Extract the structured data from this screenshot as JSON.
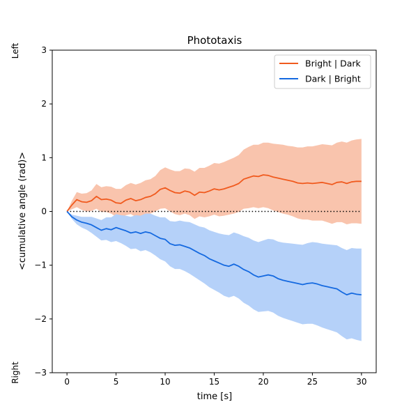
{
  "chart_data": {
    "type": "line",
    "title": "Phototaxis",
    "xlabel": "time [s]",
    "ylabel": "<cumulative angle (rad)>",
    "y_top_label": "Left",
    "y_bottom_label": "Right",
    "xlim": [
      -1.5,
      31.5
    ],
    "ylim": [
      -3,
      3
    ],
    "x_ticks": [
      0,
      5,
      10,
      15,
      20,
      25,
      30
    ],
    "y_ticks": [
      -3,
      -2,
      -1,
      0,
      1,
      2,
      3
    ],
    "y_tick_labels": [
      "−3",
      "−2",
      "−1",
      "0",
      "1",
      "2",
      "3"
    ],
    "legend_position": "top-right",
    "reference_line": {
      "y": 0,
      "style": "dotted",
      "x_range": [
        0,
        30
      ]
    },
    "x": [
      0,
      0.5,
      1,
      1.5,
      2,
      2.5,
      3,
      3.5,
      4,
      4.5,
      5,
      5.5,
      6,
      6.5,
      7,
      7.5,
      8,
      8.5,
      9,
      9.5,
      10,
      10.5,
      11,
      11.5,
      12,
      12.5,
      13,
      13.5,
      14,
      14.5,
      15,
      15.5,
      16,
      16.5,
      17,
      17.5,
      18,
      18.5,
      19,
      19.5,
      20,
      20.5,
      21,
      21.5,
      22,
      22.5,
      23,
      23.5,
      24,
      24.5,
      25,
      25.5,
      26,
      26.5,
      27,
      27.5,
      28,
      28.5,
      29,
      29.5,
      30
    ],
    "series": [
      {
        "name": "Bright | Dark",
        "color": "#f05a1e",
        "band_color": "#f9c4ad",
        "values": [
          0,
          0.12,
          0.22,
          0.18,
          0.17,
          0.2,
          0.28,
          0.22,
          0.23,
          0.21,
          0.16,
          0.15,
          0.21,
          0.24,
          0.2,
          0.22,
          0.26,
          0.28,
          0.33,
          0.41,
          0.44,
          0.39,
          0.35,
          0.34,
          0.38,
          0.36,
          0.3,
          0.36,
          0.35,
          0.38,
          0.42,
          0.4,
          0.42,
          0.45,
          0.48,
          0.52,
          0.6,
          0.63,
          0.66,
          0.65,
          0.68,
          0.67,
          0.64,
          0.62,
          0.6,
          0.58,
          0.56,
          0.53,
          0.52,
          0.53,
          0.52,
          0.53,
          0.54,
          0.52,
          0.5,
          0.54,
          0.55,
          0.52,
          0.55,
          0.56,
          0.56
        ],
        "lower": [
          0,
          0.04,
          0.08,
          0.03,
          0.0,
          0.01,
          0.05,
          -0.01,
          -0.01,
          -0.04,
          -0.1,
          -0.12,
          -0.07,
          -0.05,
          -0.1,
          -0.09,
          -0.06,
          -0.04,
          0.0,
          0.05,
          0.06,
          0.0,
          -0.05,
          -0.07,
          -0.04,
          -0.07,
          -0.14,
          -0.09,
          -0.11,
          -0.09,
          -0.06,
          -0.09,
          -0.08,
          -0.06,
          -0.04,
          -0.01,
          0.05,
          0.06,
          0.08,
          0.06,
          0.08,
          0.06,
          0.02,
          -0.01,
          -0.04,
          -0.06,
          -0.09,
          -0.13,
          -0.15,
          -0.15,
          -0.17,
          -0.17,
          -0.17,
          -0.2,
          -0.23,
          -0.2,
          -0.2,
          -0.24,
          -0.22,
          -0.22,
          -0.23
        ],
        "upper": [
          0,
          0.2,
          0.36,
          0.33,
          0.34,
          0.39,
          0.51,
          0.45,
          0.47,
          0.46,
          0.42,
          0.42,
          0.49,
          0.53,
          0.5,
          0.53,
          0.58,
          0.6,
          0.66,
          0.77,
          0.82,
          0.78,
          0.75,
          0.75,
          0.8,
          0.79,
          0.74,
          0.81,
          0.81,
          0.85,
          0.9,
          0.89,
          0.92,
          0.96,
          1.0,
          1.05,
          1.15,
          1.2,
          1.24,
          1.24,
          1.28,
          1.28,
          1.26,
          1.25,
          1.24,
          1.22,
          1.21,
          1.19,
          1.19,
          1.21,
          1.21,
          1.23,
          1.25,
          1.24,
          1.23,
          1.28,
          1.3,
          1.28,
          1.32,
          1.34,
          1.35
        ]
      },
      {
        "name": "Dark | Bright",
        "color": "#1469e0",
        "band_color": "#b5d1f9",
        "values": [
          0,
          -0.1,
          -0.16,
          -0.2,
          -0.22,
          -0.25,
          -0.3,
          -0.35,
          -0.32,
          -0.34,
          -0.3,
          -0.33,
          -0.36,
          -0.4,
          -0.38,
          -0.41,
          -0.38,
          -0.4,
          -0.45,
          -0.5,
          -0.52,
          -0.6,
          -0.63,
          -0.62,
          -0.65,
          -0.68,
          -0.73,
          -0.78,
          -0.82,
          -0.88,
          -0.92,
          -0.96,
          -1.0,
          -1.02,
          -0.98,
          -1.02,
          -1.08,
          -1.12,
          -1.18,
          -1.22,
          -1.2,
          -1.18,
          -1.2,
          -1.25,
          -1.28,
          -1.3,
          -1.32,
          -1.34,
          -1.36,
          -1.34,
          -1.33,
          -1.35,
          -1.38,
          -1.4,
          -1.42,
          -1.44,
          -1.5,
          -1.55,
          -1.52,
          -1.54,
          -1.55
        ],
        "lower": [
          0,
          -0.14,
          -0.24,
          -0.3,
          -0.34,
          -0.4,
          -0.47,
          -0.54,
          -0.53,
          -0.57,
          -0.55,
          -0.59,
          -0.64,
          -0.7,
          -0.69,
          -0.74,
          -0.72,
          -0.76,
          -0.82,
          -0.89,
          -0.93,
          -1.02,
          -1.07,
          -1.07,
          -1.11,
          -1.16,
          -1.22,
          -1.28,
          -1.34,
          -1.41,
          -1.46,
          -1.51,
          -1.57,
          -1.6,
          -1.57,
          -1.62,
          -1.7,
          -1.75,
          -1.82,
          -1.87,
          -1.86,
          -1.85,
          -1.88,
          -1.94,
          -1.98,
          -2.01,
          -2.04,
          -2.07,
          -2.1,
          -2.09,
          -2.09,
          -2.12,
          -2.16,
          -2.19,
          -2.22,
          -2.25,
          -2.32,
          -2.38,
          -2.36,
          -2.39,
          -2.41
        ],
        "upper": [
          0,
          -0.06,
          -0.08,
          -0.1,
          -0.1,
          -0.1,
          -0.13,
          -0.16,
          -0.11,
          -0.11,
          -0.05,
          -0.07,
          -0.08,
          -0.1,
          -0.07,
          -0.08,
          -0.04,
          -0.04,
          -0.08,
          -0.11,
          -0.11,
          -0.18,
          -0.19,
          -0.17,
          -0.19,
          -0.2,
          -0.24,
          -0.28,
          -0.3,
          -0.35,
          -0.38,
          -0.41,
          -0.43,
          -0.44,
          -0.39,
          -0.42,
          -0.46,
          -0.49,
          -0.54,
          -0.57,
          -0.54,
          -0.51,
          -0.52,
          -0.56,
          -0.58,
          -0.59,
          -0.6,
          -0.61,
          -0.62,
          -0.59,
          -0.57,
          -0.58,
          -0.6,
          -0.61,
          -0.62,
          -0.63,
          -0.68,
          -0.72,
          -0.68,
          -0.69,
          -0.69
        ]
      }
    ]
  }
}
